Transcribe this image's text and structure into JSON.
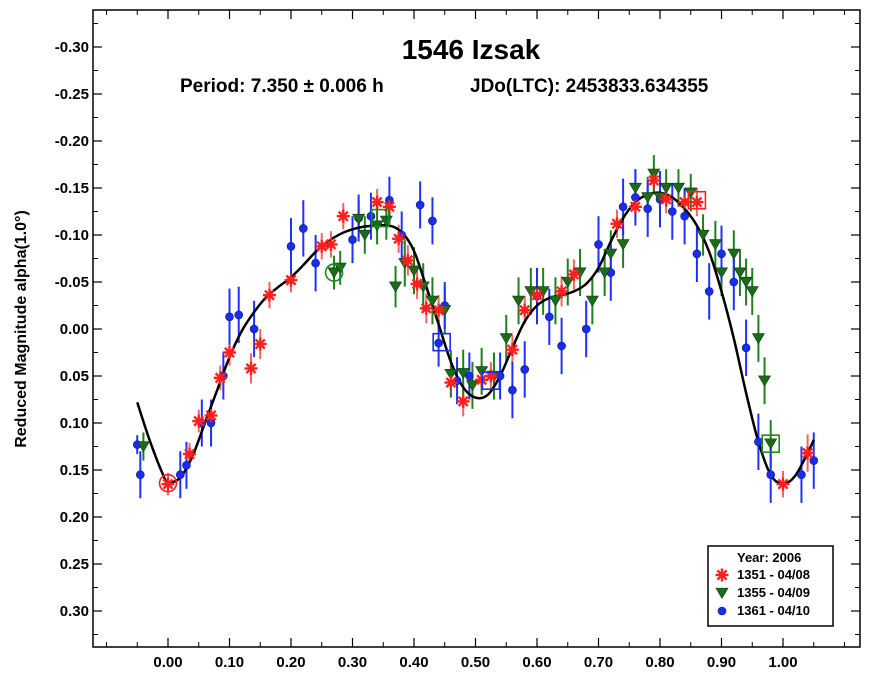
{
  "chart_data": {
    "type": "scatter",
    "title": "1546 Izsak",
    "subtitle_period": "Period: 7.350 ± 0.006 h",
    "subtitle_jd": "JDo(LTC): 2453833.634355",
    "xlabel": "",
    "ylabel": "Reduced Magnitude alpha(1.0°)",
    "xlim": [
      -0.1,
      1.1
    ],
    "ylim": [
      0.35,
      -0.35
    ],
    "y_inverted": true,
    "grid": false,
    "legend_position": "bottom-right",
    "legend_title": "Year: 2006",
    "x_ticks": [
      {
        "v": 0.0,
        "label": "0.00"
      },
      {
        "v": 0.1,
        "label": "0.10"
      },
      {
        "v": 0.2,
        "label": "0.20"
      },
      {
        "v": 0.3,
        "label": "0.30"
      },
      {
        "v": 0.4,
        "label": "0.40"
      },
      {
        "v": 0.5,
        "label": "0.50"
      },
      {
        "v": 0.6,
        "label": "0.60"
      },
      {
        "v": 0.7,
        "label": "0.70"
      },
      {
        "v": 0.8,
        "label": "0.80"
      },
      {
        "v": 0.9,
        "label": "0.90"
      },
      {
        "v": 1.0,
        "label": "1.00"
      }
    ],
    "y_ticks": [
      {
        "v": -0.3,
        "label": "-0.30"
      },
      {
        "v": -0.25,
        "label": "-0.25"
      },
      {
        "v": -0.2,
        "label": "-0.20"
      },
      {
        "v": -0.15,
        "label": "-0.15"
      },
      {
        "v": -0.1,
        "label": "-0.10"
      },
      {
        "v": -0.05,
        "label": "-0.05"
      },
      {
        "v": 0.0,
        "label": "0.00"
      },
      {
        "v": 0.05,
        "label": "0.05"
      },
      {
        "v": 0.1,
        "label": "0.10"
      },
      {
        "v": 0.15,
        "label": "0.15"
      },
      {
        "v": 0.2,
        "label": "0.20"
      },
      {
        "v": 0.25,
        "label": "0.25"
      },
      {
        "v": 0.3,
        "label": "0.30"
      }
    ],
    "fit_curve": {
      "color": "#000000",
      "points": [
        [
          -0.05,
          0.078
        ],
        [
          -0.03,
          0.118
        ],
        [
          -0.01,
          0.152
        ],
        [
          0.0,
          0.163
        ],
        [
          0.02,
          0.158
        ],
        [
          0.04,
          0.135
        ],
        [
          0.06,
          0.1
        ],
        [
          0.08,
          0.065
        ],
        [
          0.1,
          0.03
        ],
        [
          0.12,
          0.002
        ],
        [
          0.14,
          -0.018
        ],
        [
          0.16,
          -0.034
        ],
        [
          0.18,
          -0.045
        ],
        [
          0.2,
          -0.055
        ],
        [
          0.22,
          -0.068
        ],
        [
          0.24,
          -0.082
        ],
        [
          0.26,
          -0.093
        ],
        [
          0.28,
          -0.101
        ],
        [
          0.3,
          -0.106
        ],
        [
          0.32,
          -0.109
        ],
        [
          0.34,
          -0.11
        ],
        [
          0.36,
          -0.11
        ],
        [
          0.38,
          -0.103
        ],
        [
          0.4,
          -0.083
        ],
        [
          0.42,
          -0.045
        ],
        [
          0.44,
          -0.005
        ],
        [
          0.46,
          0.035
        ],
        [
          0.48,
          0.062
        ],
        [
          0.5,
          0.073
        ],
        [
          0.52,
          0.07
        ],
        [
          0.54,
          0.05
        ],
        [
          0.56,
          0.02
        ],
        [
          0.58,
          -0.008
        ],
        [
          0.6,
          -0.025
        ],
        [
          0.62,
          -0.033
        ],
        [
          0.64,
          -0.036
        ],
        [
          0.66,
          -0.04
        ],
        [
          0.68,
          -0.048
        ],
        [
          0.7,
          -0.065
        ],
        [
          0.72,
          -0.093
        ],
        [
          0.74,
          -0.118
        ],
        [
          0.76,
          -0.135
        ],
        [
          0.78,
          -0.143
        ],
        [
          0.8,
          -0.145
        ],
        [
          0.82,
          -0.14
        ],
        [
          0.84,
          -0.128
        ],
        [
          0.86,
          -0.11
        ],
        [
          0.88,
          -0.082
        ],
        [
          0.9,
          -0.04
        ],
        [
          0.92,
          0.01
        ],
        [
          0.94,
          0.068
        ],
        [
          0.96,
          0.12
        ],
        [
          0.98,
          0.155
        ],
        [
          1.0,
          0.165
        ],
        [
          1.02,
          0.156
        ],
        [
          1.04,
          0.132
        ],
        [
          1.05,
          0.118
        ]
      ]
    },
    "series": [
      {
        "name": "1351 - 04/08",
        "marker": "asterisk",
        "color": "#ff2020",
        "errbar_color": "#ff6060",
        "points": [
          [
            0.0,
            0.165,
            0.012
          ],
          [
            0.035,
            0.133,
            0.012
          ],
          [
            0.05,
            0.098,
            0.012
          ],
          [
            0.07,
            0.092,
            0.012
          ],
          [
            0.085,
            0.052,
            0.013
          ],
          [
            0.1,
            0.025,
            0.014
          ],
          [
            0.135,
            0.042,
            0.016
          ],
          [
            0.15,
            0.016,
            0.016
          ],
          [
            0.165,
            -0.036,
            0.014
          ],
          [
            0.2,
            -0.052,
            0.013
          ],
          [
            0.25,
            -0.088,
            0.014
          ],
          [
            0.265,
            -0.09,
            0.014
          ],
          [
            0.285,
            -0.12,
            0.014
          ],
          [
            0.34,
            -0.135,
            0.014
          ],
          [
            0.36,
            -0.13,
            0.014
          ],
          [
            0.375,
            -0.096,
            0.015
          ],
          [
            0.39,
            -0.073,
            0.016
          ],
          [
            0.405,
            -0.048,
            0.016
          ],
          [
            0.42,
            -0.022,
            0.016
          ],
          [
            0.44,
            -0.02,
            0.016
          ],
          [
            0.46,
            0.057,
            0.015
          ],
          [
            0.48,
            0.077,
            0.016
          ],
          [
            0.51,
            0.054,
            0.015
          ],
          [
            0.525,
            0.05,
            0.015
          ],
          [
            0.56,
            0.022,
            0.016
          ],
          [
            0.58,
            -0.02,
            0.015
          ],
          [
            0.6,
            -0.036,
            0.015
          ],
          [
            0.64,
            -0.04,
            0.016
          ],
          [
            0.66,
            -0.058,
            0.016
          ],
          [
            0.73,
            -0.112,
            0.015
          ],
          [
            0.76,
            -0.13,
            0.015
          ],
          [
            0.79,
            -0.158,
            0.015
          ],
          [
            0.81,
            -0.138,
            0.015
          ],
          [
            0.84,
            -0.135,
            0.015
          ],
          [
            0.86,
            -0.135,
            0.015
          ],
          [
            1.0,
            0.165,
            0.014
          ],
          [
            1.04,
            0.132,
            0.02
          ]
        ]
      },
      {
        "name": "1355 - 04/09",
        "marker": "triangle-down",
        "color": "#1b6b1b",
        "errbar_color": "#208020",
        "points": [
          [
            -0.04,
            0.125,
            0.015
          ],
          [
            0.27,
            -0.06,
            0.018
          ],
          [
            0.28,
            -0.065,
            0.018
          ],
          [
            0.31,
            -0.117,
            0.02
          ],
          [
            0.32,
            -0.1,
            0.02
          ],
          [
            0.34,
            -0.11,
            0.02
          ],
          [
            0.355,
            -0.115,
            0.02
          ],
          [
            0.37,
            -0.045,
            0.022
          ],
          [
            0.385,
            -0.07,
            0.025
          ],
          [
            0.4,
            -0.062,
            0.025
          ],
          [
            0.415,
            -0.045,
            0.025
          ],
          [
            0.43,
            -0.03,
            0.025
          ],
          [
            0.45,
            -0.02,
            0.025
          ],
          [
            0.46,
            0.048,
            0.025
          ],
          [
            0.48,
            0.047,
            0.025
          ],
          [
            0.495,
            0.06,
            0.025
          ],
          [
            0.51,
            0.045,
            0.025
          ],
          [
            0.53,
            0.05,
            0.025
          ],
          [
            0.55,
            0.01,
            0.025
          ],
          [
            0.57,
            -0.03,
            0.025
          ],
          [
            0.59,
            -0.04,
            0.025
          ],
          [
            0.61,
            -0.04,
            0.025
          ],
          [
            0.63,
            -0.03,
            0.025
          ],
          [
            0.65,
            -0.05,
            0.025
          ],
          [
            0.67,
            -0.06,
            0.025
          ],
          [
            0.69,
            -0.03,
            0.025
          ],
          [
            0.71,
            -0.06,
            0.025
          ],
          [
            0.72,
            -0.08,
            0.025
          ],
          [
            0.74,
            -0.09,
            0.025
          ],
          [
            0.76,
            -0.15,
            0.02
          ],
          [
            0.78,
            -0.14,
            0.022
          ],
          [
            0.79,
            -0.165,
            0.02
          ],
          [
            0.8,
            -0.14,
            0.022
          ],
          [
            0.81,
            -0.15,
            0.02
          ],
          [
            0.83,
            -0.15,
            0.02
          ],
          [
            0.85,
            -0.145,
            0.02
          ],
          [
            0.87,
            -0.1,
            0.022
          ],
          [
            0.89,
            -0.09,
            0.025
          ],
          [
            0.9,
            -0.06,
            0.025
          ],
          [
            0.92,
            -0.08,
            0.025
          ],
          [
            0.93,
            -0.06,
            0.025
          ],
          [
            0.94,
            -0.05,
            0.025
          ],
          [
            0.95,
            -0.04,
            0.025
          ],
          [
            0.96,
            0.01,
            0.025
          ],
          [
            0.97,
            0.055,
            0.025
          ],
          [
            0.98,
            0.122,
            0.025
          ]
        ]
      },
      {
        "name": "1361 - 04/10",
        "marker": "circle",
        "color": "#1a2ee8",
        "errbar_color": "#2030ff",
        "points": [
          [
            -0.05,
            0.123,
            0.01
          ],
          [
            -0.045,
            0.155,
            0.025
          ],
          [
            0.02,
            0.155,
            0.025
          ],
          [
            0.03,
            0.145,
            0.025
          ],
          [
            0.055,
            0.1,
            0.025
          ],
          [
            0.07,
            0.1,
            0.025
          ],
          [
            0.09,
            0.05,
            0.025
          ],
          [
            0.1,
            -0.013,
            0.03
          ],
          [
            0.115,
            -0.015,
            0.03
          ],
          [
            0.14,
            0.0,
            0.03
          ],
          [
            0.2,
            -0.088,
            0.03
          ],
          [
            0.22,
            -0.107,
            0.03
          ],
          [
            0.24,
            -0.07,
            0.03
          ],
          [
            0.3,
            -0.095,
            0.025
          ],
          [
            0.31,
            -0.118,
            0.025
          ],
          [
            0.33,
            -0.12,
            0.025
          ],
          [
            0.36,
            -0.137,
            0.025
          ],
          [
            0.38,
            -0.1,
            0.025
          ],
          [
            0.41,
            -0.132,
            0.025
          ],
          [
            0.43,
            -0.115,
            0.025
          ],
          [
            0.44,
            0.015,
            0.025
          ],
          [
            0.45,
            -0.025,
            0.025
          ],
          [
            0.47,
            0.055,
            0.025
          ],
          [
            0.49,
            0.05,
            0.025
          ],
          [
            0.54,
            0.05,
            0.025
          ],
          [
            0.56,
            0.065,
            0.03
          ],
          [
            0.58,
            0.043,
            0.03
          ],
          [
            0.6,
            -0.035,
            0.03
          ],
          [
            0.62,
            -0.013,
            0.03
          ],
          [
            0.64,
            0.018,
            0.03
          ],
          [
            0.68,
            0.0,
            0.03
          ],
          [
            0.7,
            -0.09,
            0.03
          ],
          [
            0.72,
            -0.06,
            0.03
          ],
          [
            0.74,
            -0.13,
            0.03
          ],
          [
            0.76,
            -0.14,
            0.03
          ],
          [
            0.78,
            -0.128,
            0.03
          ],
          [
            0.8,
            -0.138,
            0.03
          ],
          [
            0.82,
            -0.125,
            0.03
          ],
          [
            0.84,
            -0.12,
            0.03
          ],
          [
            0.86,
            -0.08,
            0.03
          ],
          [
            0.88,
            -0.04,
            0.03
          ],
          [
            0.9,
            -0.08,
            0.03
          ],
          [
            0.92,
            -0.05,
            0.03
          ],
          [
            0.94,
            0.02,
            0.03
          ],
          [
            0.96,
            0.12,
            0.03
          ],
          [
            0.98,
            0.155,
            0.03
          ],
          [
            1.03,
            0.155,
            0.03
          ],
          [
            1.05,
            0.14,
            0.03
          ]
        ]
      }
    ],
    "highlighted_points": [
      {
        "shape": "circle",
        "color": "#ff2020",
        "x": 0.0,
        "y": 0.164
      },
      {
        "shape": "circle",
        "color": "#1b8b1b",
        "x": 0.27,
        "y": -0.06
      },
      {
        "shape": "square",
        "color": "#1b8b1b",
        "x": 0.345,
        "y": -0.118
      },
      {
        "shape": "square",
        "color": "#1a2ee8",
        "x": 0.445,
        "y": 0.014
      },
      {
        "shape": "square",
        "color": "#1a2ee8",
        "x": 0.525,
        "y": 0.055
      },
      {
        "shape": "square",
        "color": "#ff2020",
        "x": 0.86,
        "y": -0.137
      },
      {
        "shape": "square",
        "color": "#1b8b1b",
        "x": 0.98,
        "y": 0.122
      }
    ]
  }
}
